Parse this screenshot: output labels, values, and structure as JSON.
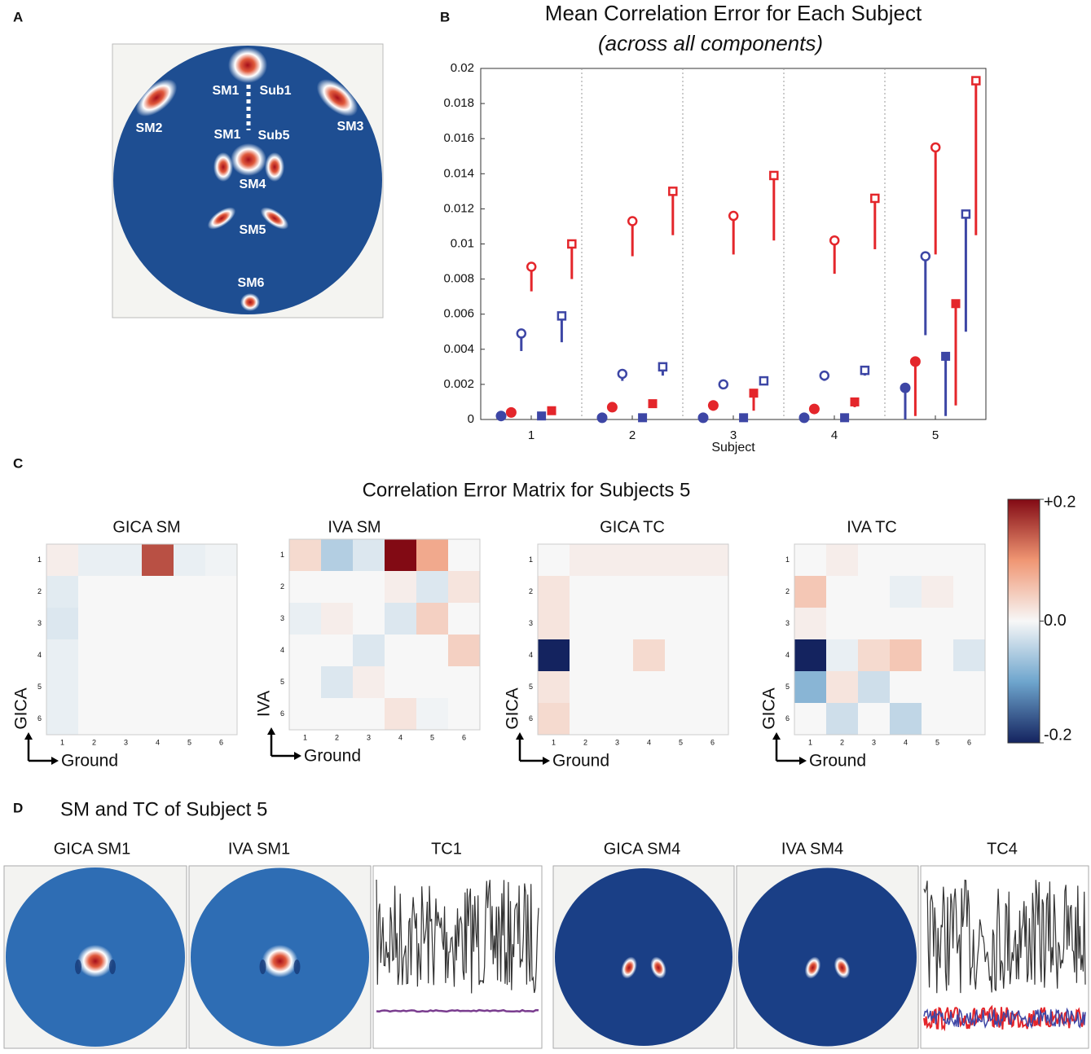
{
  "panel_labels": [
    "A",
    "B",
    "C",
    "D"
  ],
  "panel_a": {
    "labels": [
      "SM1",
      "Sub1",
      "SM2",
      "SM3",
      "SM1",
      "Sub5",
      "SM4",
      "SM5",
      "SM6"
    ]
  },
  "chart_data": [
    {
      "type": "stem",
      "title": "Mean Correlation Error for Each Subject",
      "subtitle": "(across all components)",
      "xlabel": "Subject",
      "categories": [
        "1",
        "2",
        "3",
        "4",
        "5"
      ],
      "ylim": [
        0,
        0.02
      ],
      "yticks": [
        0,
        0.002,
        0.004,
        0.006,
        0.008,
        0.01,
        0.012,
        0.014,
        0.016,
        0.018,
        0.02
      ],
      "series": [
        {
          "color": "#3d46a5",
          "marker": "circle",
          "filled": true,
          "values": [
            0.0002,
            0.0001,
            0.0001,
            0.0001,
            0.0018
          ],
          "errors": [
            0,
            0,
            0,
            0,
            0.0018
          ]
        },
        {
          "color": "#e4262b",
          "marker": "circle",
          "filled": true,
          "values": [
            0.0004,
            0.0007,
            0.0008,
            0.0006,
            0.0033
          ],
          "errors": [
            0,
            0,
            0.0003,
            0,
            0.0031
          ]
        },
        {
          "color": "#3d46a5",
          "marker": "circle",
          "filled": false,
          "values": [
            0.0049,
            0.0026,
            0.002,
            0.0025,
            0.0093
          ],
          "errors": [
            0.001,
            0.0004,
            0,
            0.0003,
            0.0045
          ]
        },
        {
          "color": "#e4262b",
          "marker": "circle",
          "filled": false,
          "values": [
            0.0087,
            0.0113,
            0.0116,
            0.0102,
            0.0155
          ],
          "errors": [
            0.0014,
            0.002,
            0.0022,
            0.0019,
            0.0061
          ]
        },
        {
          "color": "#3d46a5",
          "marker": "square",
          "filled": true,
          "values": [
            0.0002,
            0.0001,
            0.0001,
            0.0001,
            0.0036
          ],
          "errors": [
            0,
            0,
            0,
            0,
            0.0034
          ]
        },
        {
          "color": "#e4262b",
          "marker": "square",
          "filled": true,
          "values": [
            0.0005,
            0.0009,
            0.0015,
            0.001,
            0.0066
          ],
          "errors": [
            0,
            0,
            0.001,
            0.0003,
            0.0058
          ]
        },
        {
          "color": "#3d46a5",
          "marker": "square",
          "filled": false,
          "values": [
            0.0059,
            0.003,
            0.0022,
            0.0028,
            0.0117
          ],
          "errors": [
            0.0015,
            0.0005,
            0,
            0.0003,
            0.0067
          ]
        },
        {
          "color": "#e4262b",
          "marker": "square",
          "filled": false,
          "values": [
            0.01,
            0.013,
            0.0139,
            0.0126,
            0.0193
          ],
          "errors": [
            0.002,
            0.0025,
            0.0037,
            0.0029,
            0.0088
          ]
        }
      ]
    },
    {
      "type": "heatmap",
      "title": "Correlation Error Matrix for Subjects 5",
      "clim": [
        -0.2,
        0.2
      ],
      "cticks": [
        {
          "value": 0.2,
          "label": "+0.2"
        },
        {
          "value": 0,
          "label": "0.0"
        },
        {
          "value": -0.2,
          "label": "-0.2"
        }
      ],
      "subplots": [
        {
          "title": "GICA SM",
          "xlabel": "Ground",
          "ylabel": "GICA",
          "categories": [
            "1",
            "2",
            "3",
            "4",
            "5",
            "6"
          ],
          "values": [
            [
              0.01,
              -0.01,
              -0.01,
              0.15,
              -0.01,
              -0.005
            ],
            [
              -0.015,
              0,
              0,
              0,
              0,
              0
            ],
            [
              -0.02,
              0,
              0,
              0,
              0,
              0
            ],
            [
              -0.01,
              0,
              0,
              0,
              0,
              0
            ],
            [
              -0.01,
              0,
              0,
              0,
              0,
              0
            ],
            [
              -0.01,
              0,
              0,
              0,
              0,
              0
            ]
          ]
        },
        {
          "title": "IVA SM",
          "xlabel": "Ground",
          "ylabel": "IVA",
          "categories": [
            "1",
            "2",
            "3",
            "4",
            "5",
            "6"
          ],
          "values": [
            [
              0.03,
              -0.05,
              -0.02,
              0.2,
              0.08,
              0
            ],
            [
              0,
              0,
              0,
              0.01,
              -0.02,
              0.02
            ],
            [
              -0.01,
              0.01,
              0,
              -0.02,
              0.04,
              0
            ],
            [
              0,
              0,
              -0.02,
              0,
              0,
              0.04
            ],
            [
              0,
              -0.02,
              0.01,
              0,
              0,
              0
            ],
            [
              0,
              0,
              0,
              0.02,
              -0.005,
              0
            ]
          ]
        },
        {
          "title": "GICA TC",
          "xlabel": "Ground",
          "ylabel": "GICA",
          "categories": [
            "1",
            "2",
            "3",
            "4",
            "5",
            "6"
          ],
          "values": [
            [
              0,
              0.01,
              0.01,
              0.01,
              0.01,
              0.01
            ],
            [
              0.02,
              0,
              0,
              0,
              0,
              0
            ],
            [
              0.02,
              0,
              0,
              0,
              0,
              0
            ],
            [
              -0.2,
              0,
              0,
              0.03,
              0,
              0
            ],
            [
              0.02,
              0,
              0,
              0,
              0,
              0
            ],
            [
              0.03,
              0,
              0,
              0,
              0,
              0
            ]
          ]
        },
        {
          "title": "IVA TC",
          "xlabel": "Ground",
          "ylabel": "GICA",
          "categories": [
            "1",
            "2",
            "3",
            "4",
            "5",
            "6"
          ],
          "values": [
            [
              0,
              0.01,
              0,
              0,
              0,
              0
            ],
            [
              0.05,
              0,
              0,
              -0.01,
              0.01,
              0
            ],
            [
              0.01,
              0,
              0,
              0,
              0,
              0
            ],
            [
              -0.2,
              -0.01,
              0.03,
              0.05,
              0,
              -0.02
            ],
            [
              -0.08,
              0.02,
              -0.03,
              0,
              0,
              0
            ],
            [
              0,
              -0.03,
              0,
              -0.04,
              0,
              0
            ]
          ]
        }
      ]
    }
  ],
  "panel_d": {
    "title": "SM and TC of Subject 5",
    "titles": [
      "GICA SM1",
      "IVA SM1",
      "TC1",
      "GICA SM4",
      "IVA SM4",
      "TC4"
    ]
  }
}
